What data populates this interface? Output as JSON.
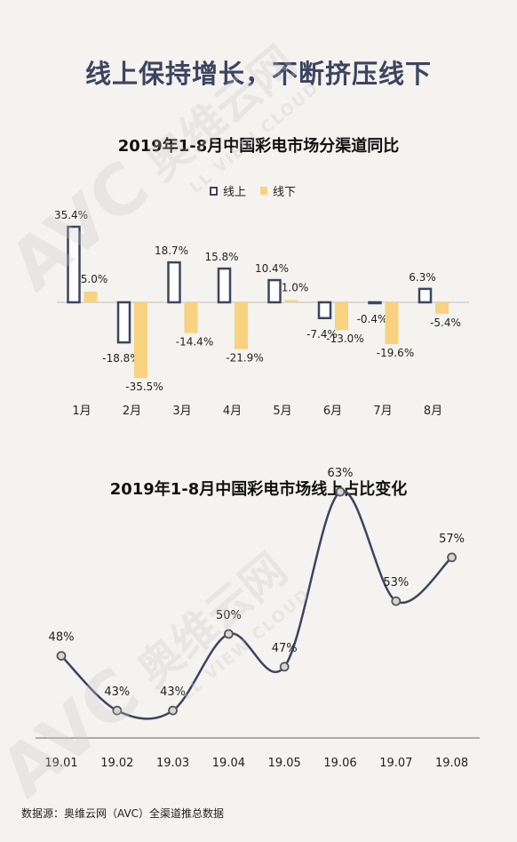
{
  "page": {
    "title": "线上保持增长，不断挤压线下",
    "footer": "数据源：奥维云网（AVC）全渠道推总数据"
  },
  "watermark": {
    "brand": "AVC",
    "cn": "奥维云网",
    "sub": "LL VIEW CLOUD",
    "color": "#c8c8c8"
  },
  "chart_data": [
    {
      "type": "bar",
      "title": "2019年1-8月中国彩电市场分渠道同比",
      "categories": [
        "1月",
        "2月",
        "3月",
        "4月",
        "5月",
        "6月",
        "7月",
        "8月"
      ],
      "series": [
        {
          "name": "线上",
          "values": [
            35.4,
            -18.8,
            18.7,
            15.8,
            10.4,
            -7.4,
            -0.4,
            6.3
          ],
          "labels": [
            "35.4%",
            "-18.8%",
            "18.7%",
            "15.8%",
            "10.4%",
            "-7.4%",
            "-0.4%",
            "6.3%"
          ],
          "color": "#3d4460"
        },
        {
          "name": "线下",
          "values": [
            5.0,
            -35.5,
            -14.4,
            -21.9,
            1.0,
            -13.0,
            -19.6,
            -5.4
          ],
          "labels": [
            "5.0%",
            "-35.5%",
            "-14.4%",
            "-21.9%",
            "1.0%",
            "-13.0%",
            "-19.6%",
            "-5.4%"
          ],
          "color": "#f8d27f"
        }
      ],
      "legend": "top-center"
    },
    {
      "type": "line",
      "title": "2019年1-8月中国彩电市场线上占比变化",
      "x": [
        "19.01",
        "19.02",
        "19.03",
        "19.04",
        "19.05",
        "19.06",
        "19.07",
        "19.08"
      ],
      "values": [
        48,
        43,
        43,
        50,
        47,
        63,
        53,
        57
      ],
      "labels": [
        "48%",
        "43%",
        "43%",
        "50%",
        "47%",
        "63%",
        "53%",
        "57%"
      ],
      "color": "#3d4460"
    }
  ]
}
